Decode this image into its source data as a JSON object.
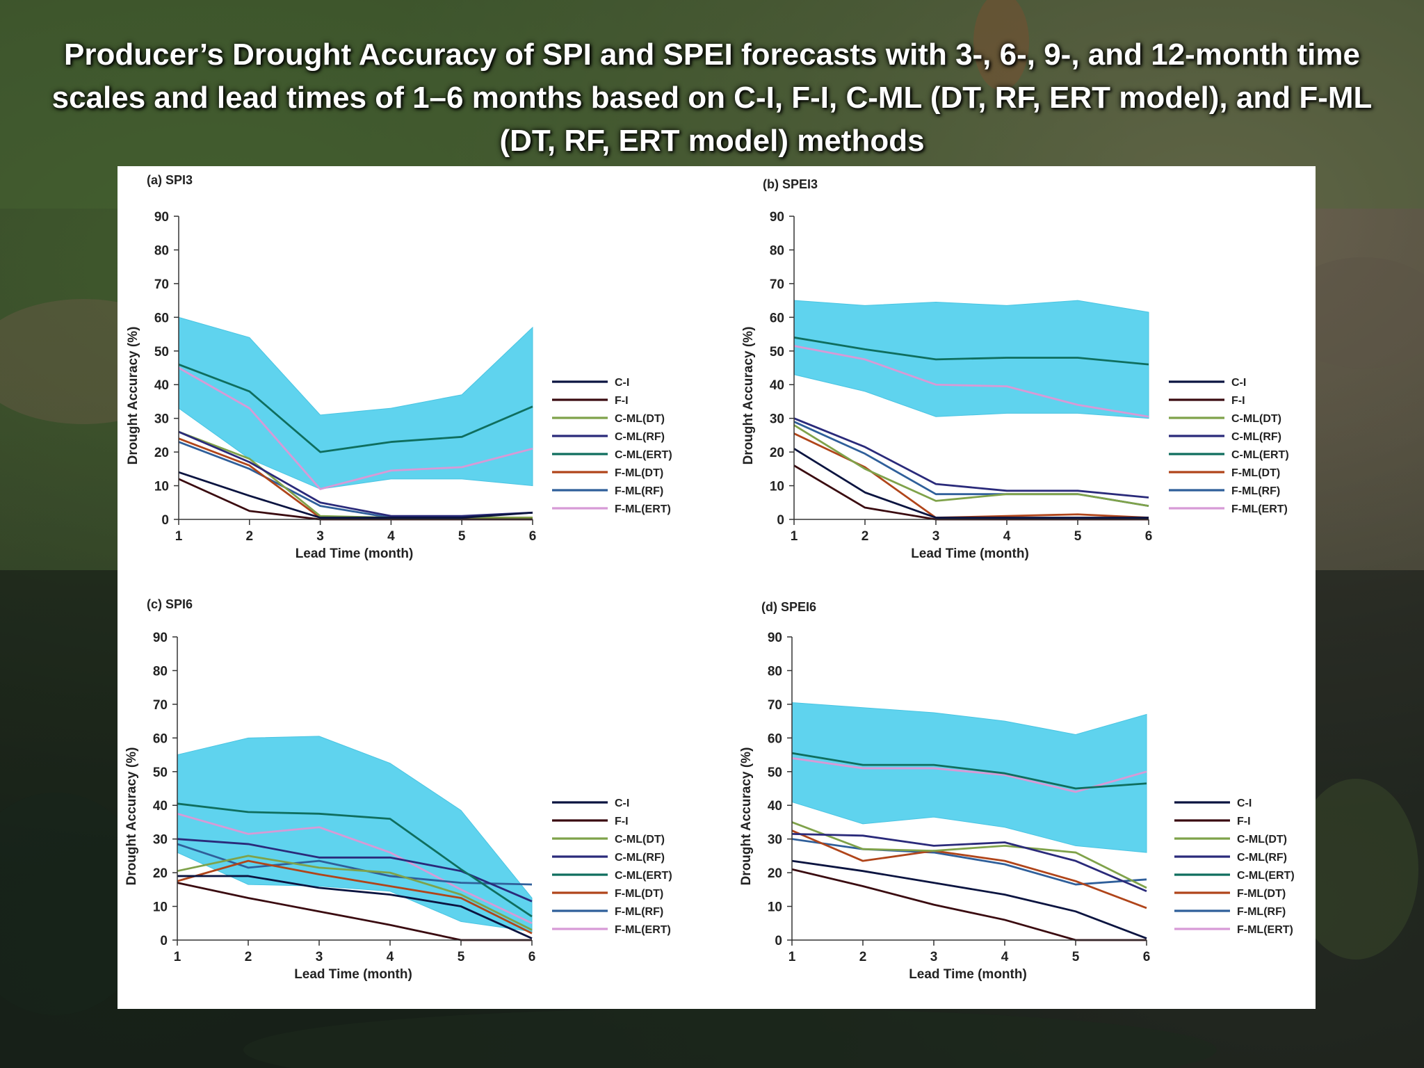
{
  "title": "Producer’s Drought Accuracy of SPI and SPEI forecasts with 3-, 6-, 9-, and 12-month time scales and lead times of 1–6 months based on C-I, F-I, C-ML (DT, RF, ERT model), and F-ML (DT, RF, ERT model) methods",
  "colors": {
    "band": "#5fd3ee",
    "C-I": "#0b1440",
    "F-I": "#3a0b10",
    "C-ML(DT)": "#7fa24a",
    "C-ML(RF)": "#2a2a7a",
    "C-ML(ERT)": "#0f6e5e",
    "F-ML(DT)": "#b0451a",
    "F-ML(RF)": "#2f5f9a",
    "F-ML(ERT)": "#d79ad6"
  },
  "chart_data": [
    {
      "type": "line",
      "panel_label": "(a) SPI3",
      "xlabel": "Lead Time (month)",
      "ylabel": "Drought Accuracy (%)",
      "x": [
        1,
        2,
        3,
        4,
        5,
        6
      ],
      "xlim": [
        1,
        6
      ],
      "ylim": [
        0,
        90
      ],
      "yticks": [
        0,
        10,
        20,
        30,
        40,
        50,
        60,
        70,
        80,
        90
      ],
      "legend_position": "right",
      "band": {
        "upper": [
          60,
          54,
          31,
          33,
          37,
          57
        ],
        "lower": [
          33,
          18,
          9,
          12,
          12,
          10
        ]
      },
      "series": [
        {
          "name": "C-I",
          "values": [
            14,
            7,
            0.5,
            0.5,
            0.5,
            2
          ]
        },
        {
          "name": "F-I",
          "values": [
            12,
            2.5,
            0,
            0,
            0,
            0
          ]
        },
        {
          "name": "C-ML(DT)",
          "values": [
            26,
            18,
            1,
            0.5,
            0.5,
            0.5
          ]
        },
        {
          "name": "C-ML(RF)",
          "values": [
            26,
            17,
            5,
            1,
            1,
            2
          ]
        },
        {
          "name": "C-ML(ERT)",
          "values": [
            46,
            38,
            20,
            23,
            24.5,
            33.5
          ]
        },
        {
          "name": "F-ML(DT)",
          "values": [
            24,
            16,
            0.5,
            0.5,
            0.5,
            0.5
          ]
        },
        {
          "name": "F-ML(RF)",
          "values": [
            23,
            15,
            4,
            0.5,
            0.5,
            0.5
          ]
        },
        {
          "name": "F-ML(ERT)",
          "values": [
            45,
            33,
            9,
            14.5,
            15.5,
            21
          ]
        }
      ]
    },
    {
      "type": "line",
      "panel_label": "(b) SPEI3",
      "xlabel": "Lead Time (month)",
      "ylabel": "Drought Accuracy (%)",
      "x": [
        1,
        2,
        3,
        4,
        5,
        6
      ],
      "xlim": [
        1,
        6
      ],
      "ylim": [
        0,
        90
      ],
      "yticks": [
        0,
        10,
        20,
        30,
        40,
        50,
        60,
        70,
        80,
        90
      ],
      "legend_position": "right",
      "band": {
        "upper": [
          65,
          63.5,
          64.5,
          63.5,
          65,
          61.5
        ],
        "lower": [
          43,
          38,
          30.5,
          31.5,
          31.5,
          30
        ]
      },
      "series": [
        {
          "name": "C-I",
          "values": [
            21,
            8,
            0.5,
            0.5,
            0.5,
            0.5
          ]
        },
        {
          "name": "F-I",
          "values": [
            16,
            3.5,
            0,
            0,
            0,
            0
          ]
        },
        {
          "name": "C-ML(DT)",
          "values": [
            28,
            15,
            5.5,
            7.5,
            7.5,
            4
          ]
        },
        {
          "name": "C-ML(RF)",
          "values": [
            30,
            21.5,
            10.5,
            8.5,
            8.5,
            6.5
          ]
        },
        {
          "name": "C-ML(ERT)",
          "values": [
            54,
            50.5,
            47.5,
            48,
            48,
            46
          ]
        },
        {
          "name": "F-ML(DT)",
          "values": [
            25.5,
            15.5,
            0.5,
            1,
            1.5,
            0.5
          ]
        },
        {
          "name": "F-ML(RF)",
          "values": [
            29,
            19.5,
            7.5,
            7.5,
            7.5,
            4
          ]
        },
        {
          "name": "F-ML(ERT)",
          "values": [
            51.5,
            47.5,
            40,
            39.5,
            34,
            30.5
          ]
        }
      ]
    },
    {
      "type": "line",
      "panel_label": "(c) SPI6",
      "xlabel": "Lead Time (month)",
      "ylabel": "Drought Accuracy (%)",
      "x": [
        1,
        2,
        3,
        4,
        5,
        6
      ],
      "xlim": [
        1,
        6
      ],
      "ylim": [
        0,
        90
      ],
      "yticks": [
        0,
        10,
        20,
        30,
        40,
        50,
        60,
        70,
        80,
        90
      ],
      "legend_position": "right",
      "band": {
        "upper": [
          55,
          60,
          60.5,
          52.5,
          38.5,
          12.5
        ],
        "lower": [
          26,
          16.5,
          16,
          14.5,
          5.5,
          2.5
        ]
      },
      "series": [
        {
          "name": "C-I",
          "values": [
            19,
            19,
            15.5,
            13.5,
            10,
            0.5
          ]
        },
        {
          "name": "F-I",
          "values": [
            17,
            12.5,
            8.5,
            4.5,
            0,
            0
          ]
        },
        {
          "name": "C-ML(DT)",
          "values": [
            20.5,
            25,
            21.5,
            20,
            13.5,
            3
          ]
        },
        {
          "name": "C-ML(RF)",
          "values": [
            30,
            28.5,
            24.5,
            24.5,
            20.5,
            11.5
          ]
        },
        {
          "name": "C-ML(ERT)",
          "values": [
            40.5,
            38,
            37.5,
            36,
            21,
            7
          ]
        },
        {
          "name": "F-ML(DT)",
          "values": [
            17.5,
            23.5,
            19.5,
            16,
            12.5,
            2
          ]
        },
        {
          "name": "F-ML(RF)",
          "values": [
            28.5,
            21.5,
            23.5,
            19,
            17,
            16.5
          ]
        },
        {
          "name": "F-ML(ERT)",
          "values": [
            37.5,
            31.5,
            33.5,
            26,
            15,
            5
          ]
        }
      ]
    },
    {
      "type": "line",
      "panel_label": "(d) SPEI6",
      "xlabel": "Lead Time (month)",
      "ylabel": "Drought Accuracy (%)",
      "x": [
        1,
        2,
        3,
        4,
        5,
        6
      ],
      "xlim": [
        1,
        6
      ],
      "ylim": [
        0,
        90
      ],
      "yticks": [
        0,
        10,
        20,
        30,
        40,
        50,
        60,
        70,
        80,
        90
      ],
      "legend_position": "right",
      "band": {
        "upper": [
          70.5,
          69,
          67.5,
          65,
          61,
          67
        ],
        "lower": [
          41,
          34.5,
          36.5,
          33.5,
          28,
          26
        ]
      },
      "series": [
        {
          "name": "C-I",
          "values": [
            23.5,
            20.5,
            17,
            13.5,
            8.5,
            0.5
          ]
        },
        {
          "name": "F-I",
          "values": [
            21,
            16,
            10.5,
            6,
            0,
            0
          ]
        },
        {
          "name": "C-ML(DT)",
          "values": [
            35,
            27,
            26.5,
            28,
            26,
            15.5
          ]
        },
        {
          "name": "C-ML(RF)",
          "values": [
            31.5,
            31,
            28,
            29,
            23.5,
            14.5
          ]
        },
        {
          "name": "C-ML(ERT)",
          "values": [
            55.5,
            52,
            52,
            49.5,
            45,
            46.5
          ]
        },
        {
          "name": "F-ML(DT)",
          "values": [
            32.5,
            23.5,
            26.5,
            23.5,
            17.5,
            9.5
          ]
        },
        {
          "name": "F-ML(RF)",
          "values": [
            30,
            27,
            26,
            22.5,
            16.5,
            18
          ]
        },
        {
          "name": "F-ML(ERT)",
          "values": [
            54,
            51,
            51,
            49,
            44,
            50
          ]
        }
      ]
    }
  ]
}
